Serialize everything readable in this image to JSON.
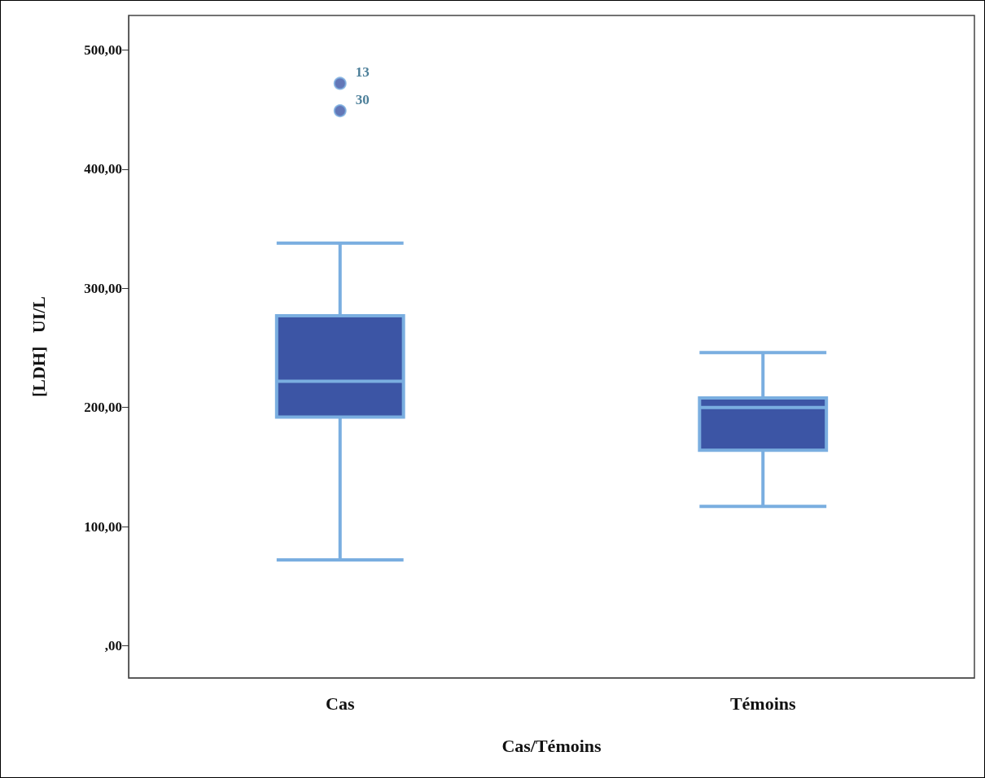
{
  "chart_data": {
    "type": "box",
    "categories": [
      "Cas",
      "Témoins"
    ],
    "xlabel": "Cas/Témoins",
    "ylabel": "[LDH]   UI/L",
    "boxes": [
      {
        "low": 72,
        "q1": 192,
        "median": 222,
        "q3": 277,
        "high": 338,
        "outliers": [
          472,
          449
        ]
      },
      {
        "low": 117,
        "q1": 164,
        "median": 200,
        "q3": 208,
        "high": 246
      }
    ],
    "color": "#3c55a5",
    "ylim": [
      -27,
      529
    ],
    "yticks": [
      {
        "value": 0,
        "label": ",00"
      },
      {
        "value": 100,
        "label": "100,00"
      },
      {
        "value": 200,
        "label": "200,00"
      },
      {
        "value": 300,
        "label": "300,00"
      },
      {
        "value": 400,
        "label": "400,00"
      },
      {
        "value": 500,
        "label": "500,00"
      }
    ],
    "marker": "circle",
    "grid": false,
    "annotations": [
      "13",
      "30"
    ]
  }
}
